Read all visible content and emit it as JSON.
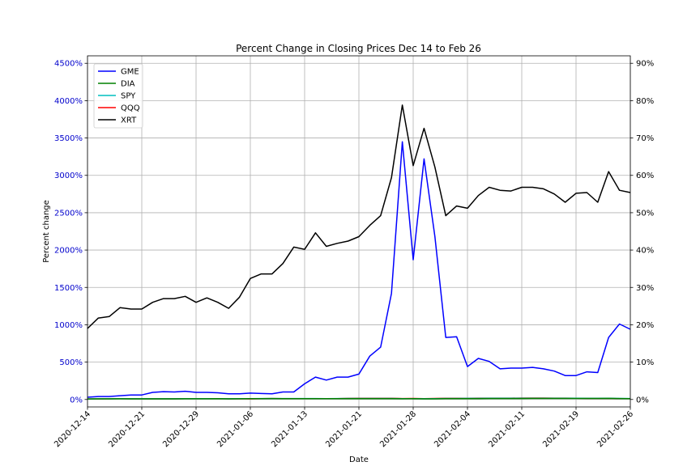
{
  "chart_data": {
    "type": "line",
    "title": "Percent Change in Closing Prices Dec 14 to Feb 26",
    "xlabel": "Date",
    "ylabel": "Percent change",
    "grid": true,
    "legend_position": "top-left",
    "x_tick_labels": [
      "2020-12-14",
      "2020-12-21",
      "2020-12-29",
      "2021-01-06",
      "2021-01-13",
      "2021-01-21",
      "2021-01-28",
      "2021-02-04",
      "2021-02-11",
      "2021-02-19",
      "2021-02-26"
    ],
    "x_tick_positions": [
      0,
      5,
      10,
      15,
      20,
      25,
      30,
      35,
      40,
      45,
      50
    ],
    "xlim": [
      0,
      50
    ],
    "left_axis": {
      "ylim": [
        -100,
        4600
      ],
      "ticks": [
        0,
        500,
        1000,
        1500,
        2000,
        2500,
        3000,
        3500,
        4000,
        4500
      ],
      "tick_labels": [
        "0%",
        "500%",
        "1000%",
        "1500%",
        "2000%",
        "2500%",
        "3000%",
        "3500%",
        "4000%",
        "4500%"
      ],
      "color": "#0000cc"
    },
    "right_axis": {
      "ylim": [
        -2,
        92
      ],
      "ticks": [
        0,
        10,
        20,
        30,
        40,
        50,
        60,
        70,
        80,
        90
      ],
      "tick_labels": [
        "0%",
        "10%",
        "20%",
        "30%",
        "40%",
        "50%",
        "60%",
        "70%",
        "80%",
        "90%"
      ],
      "color": "#000000"
    },
    "x": [
      0,
      1,
      2,
      3,
      4,
      5,
      6,
      7,
      8,
      9,
      10,
      11,
      12,
      13,
      14,
      15,
      16,
      17,
      18,
      19,
      20,
      21,
      22,
      23,
      24,
      25,
      26,
      27,
      28,
      29,
      30,
      31,
      32,
      33,
      34,
      35,
      36,
      37,
      38,
      39,
      40,
      41,
      42,
      43,
      44,
      45,
      46,
      47,
      48,
      49,
      50
    ],
    "series": [
      {
        "name": "GME",
        "color": "#0000ff",
        "axis": "left",
        "values": [
          30,
          40,
          40,
          50,
          60,
          60,
          95,
          105,
          100,
          110,
          95,
          95,
          90,
          75,
          75,
          85,
          80,
          75,
          100,
          100,
          210,
          300,
          260,
          300,
          300,
          340,
          580,
          700,
          1420,
          3450,
          1870,
          3220,
          2180,
          830,
          840,
          440,
          550,
          510,
          410,
          420,
          420,
          430,
          410,
          380,
          320,
          320,
          370,
          360,
          830,
          1010,
          940
        ]
      },
      {
        "name": "DIA",
        "color": "#008000",
        "axis": "left",
        "values": [
          7.5,
          8.6,
          8.4,
          9.0,
          8.4,
          8.4,
          7.8,
          8.4,
          8.6,
          9.2,
          9.0,
          9.4,
          10.0,
          8.6,
          9.4,
          11.0,
          11.6,
          13.0,
          11.2,
          11.4,
          11.8,
          11.2,
          10.6,
          11.0,
          12.0,
          12.0,
          11.4,
          11.3,
          11.2,
          9.0,
          10.0,
          7.8,
          8.6,
          10.2,
          10.2,
          11.4,
          12.0,
          12.8,
          12.8,
          13.0,
          13.0,
          13.2,
          13.4,
          13.8,
          13.4,
          13.2,
          13.3,
          13.4,
          14.8,
          12.5,
          11.2
        ]
      },
      {
        "name": "SPY",
        "color": "#00bfbf",
        "axis": "left",
        "values": [
          7.6,
          9.6,
          9.8,
          10.4,
          9.6,
          9.2,
          9.2,
          9.4,
          9.6,
          10.2,
          10.0,
          10.4,
          11.0,
          9.6,
          10.0,
          11.0,
          12.4,
          13.0,
          12.2,
          12.4,
          12.6,
          12.2,
          11.4,
          12.2,
          13.6,
          14.0,
          13.8,
          14.0,
          13.8,
          11.0,
          12.0,
          9.8,
          11.6,
          13.2,
          13.4,
          14.6,
          15.0,
          15.8,
          15.8,
          15.8,
          16.0,
          16.6,
          16.6,
          16.6,
          16.0,
          15.8,
          14.8,
          15.0,
          15.8,
          13.4,
          12.8
        ]
      },
      {
        "name": "QQQ",
        "color": "#ff0000",
        "axis": "left",
        "values": [
          7.4,
          8.8,
          9.4,
          10.2,
          9.6,
          9.4,
          9.6,
          9.2,
          9.6,
          10.6,
          10.8,
          10.8,
          11.0,
          9.6,
          10.2,
          8.8,
          11.4,
          13.0,
          11.6,
          11.2,
          11.8,
          11.4,
          10.8,
          11.8,
          14.6,
          15.6,
          15.4,
          16.2,
          16.4,
          13.0,
          13.8,
          11.4,
          14.0,
          15.6,
          17.0,
          17.2,
          18.0,
          18.0,
          17.8,
          18.4,
          19.0,
          19.0,
          18.6,
          18.0,
          17.6,
          17.2,
          14.2,
          14.0,
          15.0,
          10.8,
          11.0
        ]
      },
      {
        "name": "XRT",
        "color": "#000000",
        "axis": "right",
        "values": [
          19.0,
          21.8,
          22.2,
          24.6,
          24.2,
          24.2,
          26.0,
          27.0,
          27.0,
          27.6,
          26.0,
          27.2,
          26.0,
          24.4,
          27.4,
          32.4,
          33.6,
          33.6,
          36.4,
          40.8,
          40.2,
          44.6,
          41.0,
          41.8,
          42.4,
          43.6,
          46.6,
          49.2,
          59.4,
          78.8,
          62.6,
          72.6,
          62.2,
          49.2,
          51.8,
          51.2,
          54.6,
          56.8,
          56.0,
          55.8,
          56.8,
          56.8,
          56.4,
          55.0,
          52.8,
          55.2,
          55.4,
          52.8,
          61.0,
          56.0,
          55.4
        ]
      }
    ]
  }
}
